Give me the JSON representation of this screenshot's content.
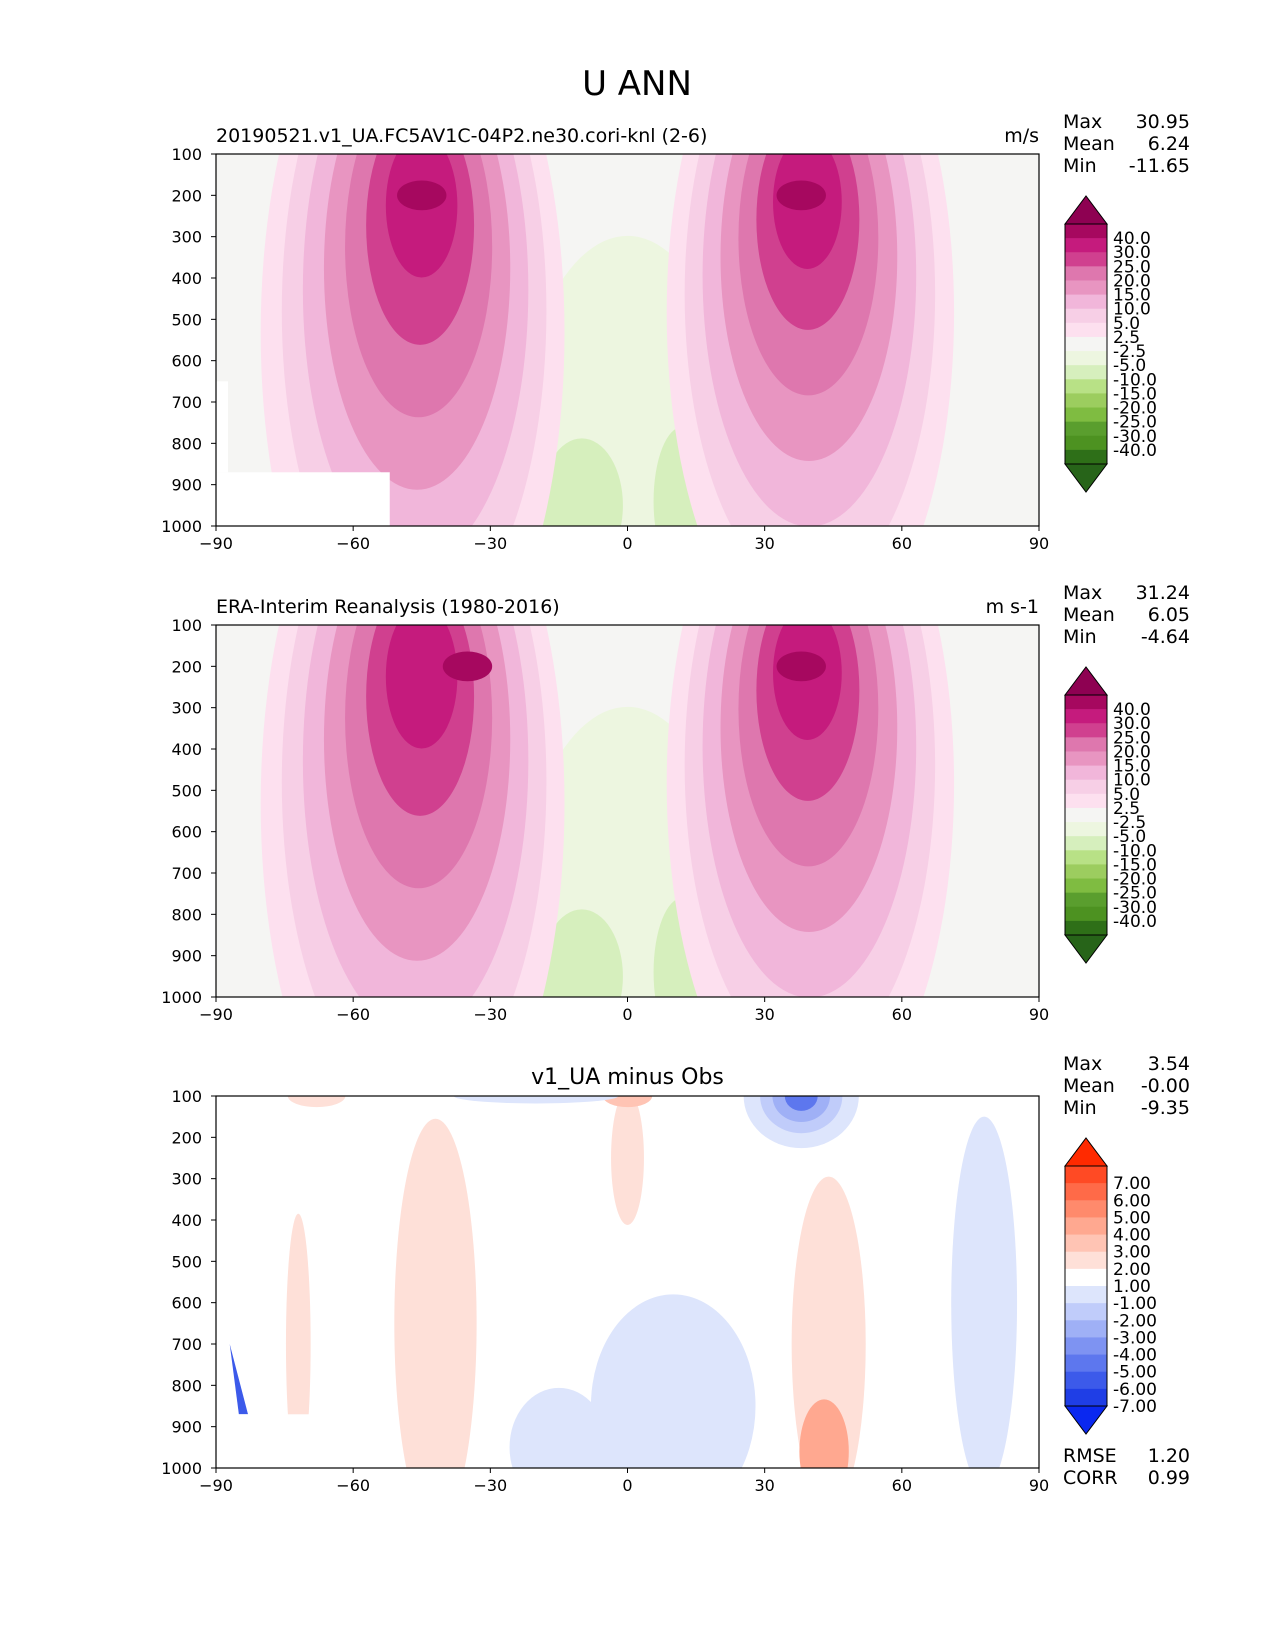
{
  "figure": {
    "title": "U ANN"
  },
  "chart_data": [
    {
      "type": "heatmap",
      "title": "20190521.v1_UA.FC5AV1C-04P2.ne30.cori-knl (2-6)",
      "units": "m/s",
      "stats": {
        "Max": "30.95",
        "Mean": "6.24",
        "Min": "-11.65"
      },
      "xlim": [
        -90,
        90
      ],
      "ylim": [
        1000,
        100
      ],
      "xticks": [
        "−90",
        "−60",
        "−30",
        "0",
        "30",
        "60",
        "90"
      ],
      "yticks": [
        "100",
        "200",
        "300",
        "400",
        "500",
        "600",
        "700",
        "800",
        "900",
        "1000"
      ],
      "colorbar_labels": [
        "40.0",
        "30.0",
        "25.0",
        "20.0",
        "15.0",
        "10.0",
        "5.0",
        "2.5",
        "-2.5",
        "-5.0",
        "-10.0",
        "-15.0",
        "-20.0",
        "-25.0",
        "-30.0",
        "-40.0"
      ],
      "colorbar_colors": [
        "#8e0152",
        "#a6085f",
        "#c51b7d",
        "#d0408f",
        "#de77ae",
        "#e895c1",
        "#f1b6da",
        "#f7cfe6",
        "#fde0ef",
        "#f5f5f3",
        "#edf6e0",
        "#d6efbd",
        "#b8e186",
        "#9ccd5f",
        "#7fbc41",
        "#5a9e2e",
        "#4d9221",
        "#2e6f18",
        "#276419"
      ],
      "features": [
        {
          "label": "jet-sh",
          "lat": -45,
          "p": 200,
          "value": 30.95
        },
        {
          "label": "jet-nh",
          "lat": 38,
          "p": 200,
          "value": 27
        }
      ]
    },
    {
      "type": "heatmap",
      "title": "ERA-Interim Reanalysis (1980-2016)",
      "units": "m s-1",
      "stats": {
        "Max": "31.24",
        "Mean": "6.05",
        "Min": "-4.64"
      },
      "xlim": [
        -90,
        90
      ],
      "ylim": [
        1000,
        100
      ],
      "xticks": [
        "−90",
        "−60",
        "−30",
        "0",
        "30",
        "60",
        "90"
      ],
      "yticks": [
        "100",
        "200",
        "300",
        "400",
        "500",
        "600",
        "700",
        "800",
        "900",
        "1000"
      ],
      "colorbar_labels": [
        "40.0",
        "30.0",
        "25.0",
        "20.0",
        "15.0",
        "10.0",
        "5.0",
        "2.5",
        "-2.5",
        "-5.0",
        "-10.0",
        "-15.0",
        "-20.0",
        "-25.0",
        "-30.0",
        "-40.0"
      ],
      "colorbar_colors": [
        "#8e0152",
        "#a6085f",
        "#c51b7d",
        "#d0408f",
        "#de77ae",
        "#e895c1",
        "#f1b6da",
        "#f7cfe6",
        "#fde0ef",
        "#f5f5f3",
        "#edf6e0",
        "#d6efbd",
        "#b8e186",
        "#9ccd5f",
        "#7fbc41",
        "#5a9e2e",
        "#4d9221",
        "#2e6f18",
        "#276419"
      ],
      "features": [
        {
          "label": "jet-sh",
          "lat": -35,
          "p": 200,
          "value": 31.24
        },
        {
          "label": "jet-nh",
          "lat": 38,
          "p": 200,
          "value": 30
        }
      ]
    },
    {
      "type": "heatmap",
      "title": "v1_UA minus Obs",
      "units": "",
      "stats": {
        "Max": "3.54",
        "Mean": "-0.00",
        "Min": "-9.35"
      },
      "metrics": {
        "RMSE": "1.20",
        "CORR": "0.99"
      },
      "xlim": [
        -90,
        90
      ],
      "ylim": [
        1000,
        100
      ],
      "xticks": [
        "−90",
        "−60",
        "−30",
        "0",
        "30",
        "60",
        "90"
      ],
      "yticks": [
        "100",
        "200",
        "300",
        "400",
        "500",
        "600",
        "700",
        "800",
        "900",
        "1000"
      ],
      "colorbar_labels": [
        "7.00",
        "6.00",
        "5.00",
        "4.00",
        "3.00",
        "2.00",
        "1.00",
        "-1.00",
        "-2.00",
        "-3.00",
        "-4.00",
        "-5.00",
        "-6.00",
        "-7.00"
      ],
      "colorbar_colors": [
        "#ff2a00",
        "#ff4a24",
        "#ff6a48",
        "#ff8a6c",
        "#ffa890",
        "#ffc4b4",
        "#fee0d8",
        "#ffffff",
        "#dde5fc",
        "#c0ccfa",
        "#9fb0f6",
        "#7e93f2",
        "#5d77ee",
        "#3c5aea",
        "#1f3ee6",
        "#0a28f0"
      ],
      "features": [
        {
          "label": "min-nh-upper",
          "lat": 38,
          "p": 100,
          "value": -9.35
        },
        {
          "label": "max-sh",
          "lat": -45,
          "p": 400,
          "value": 2
        },
        {
          "label": "max-nh-lower",
          "lat": 43,
          "p": 950,
          "value": 3.54
        }
      ]
    }
  ]
}
